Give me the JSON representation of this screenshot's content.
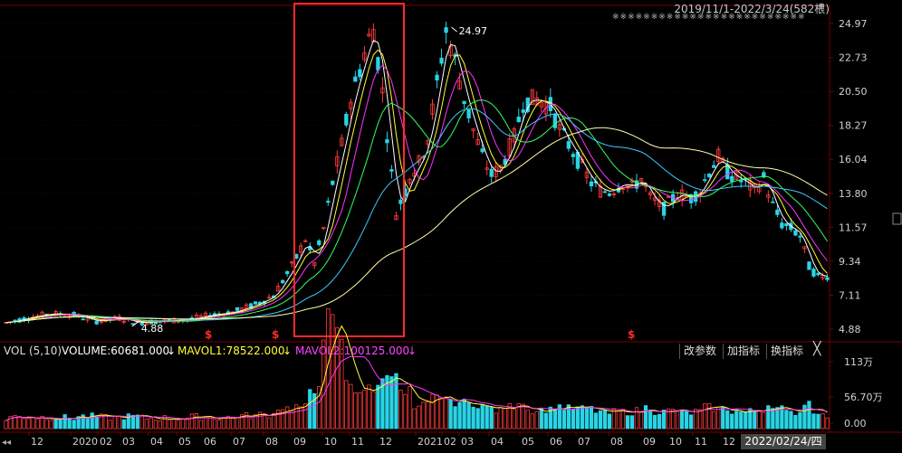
{
  "header": {
    "range_text": "2019/11/1-2022/3/24(582根)",
    "dots_text": "※※※※※※※※※※※※※※※※※※※※※※※※※"
  },
  "colors": {
    "up": "#ff3b3b",
    "down": "#29d4e6",
    "ma1": "#ffffff",
    "ma2": "#ffff33",
    "ma3": "#ff33ff",
    "ma4": "#33ff66",
    "ma5": "#40c8ff",
    "ma6": "#ffffaa",
    "highlight_box": "#ff2a2a"
  },
  "chart_data": {
    "type": "candlestick",
    "price_axis_ticks": [
      "24.97",
      "22.73",
      "20.50",
      "18.27",
      "16.04",
      "13.80",
      "11.57",
      "9.34",
      "7.11",
      "4.88"
    ],
    "y_range": [
      4.88,
      24.97
    ],
    "annotations": {
      "max_label": "24.97",
      "min_label": "4.88",
      "signal_marks": [
        "$",
        "$",
        "$"
      ],
      "highlighted_period": "2020/09 - 2020/12"
    },
    "x_labels": [
      "12",
      "2020",
      "02",
      "03",
      "04",
      "05",
      "06",
      "07",
      "08",
      "09",
      "10",
      "11",
      "12",
      "2021",
      "02",
      "03",
      "04",
      "05",
      "06",
      "07",
      "08",
      "09",
      "10",
      "11",
      "12",
      "2022/02/24/四"
    ],
    "price_keypoints": [
      [
        0,
        5.3
      ],
      [
        6,
        5.7
      ],
      [
        10,
        5.9
      ],
      [
        15,
        5.8
      ],
      [
        20,
        5.4
      ],
      [
        25,
        5.6
      ],
      [
        29,
        5.3
      ],
      [
        34,
        5.4
      ],
      [
        40,
        5.5
      ],
      [
        45,
        5.8
      ],
      [
        50,
        6.0
      ],
      [
        55,
        6.5
      ],
      [
        59,
        7.1
      ],
      [
        63,
        9.0
      ],
      [
        66,
        10.8
      ],
      [
        68,
        9.2
      ],
      [
        70,
        11.5
      ],
      [
        72,
        14.5
      ],
      [
        74,
        17.0
      ],
      [
        76,
        20.0
      ],
      [
        78,
        22.0
      ],
      [
        80,
        24.0
      ],
      [
        81,
        24.6
      ],
      [
        83,
        20.5
      ],
      [
        85,
        15.0
      ],
      [
        86,
        12.5
      ],
      [
        88,
        14.0
      ],
      [
        89,
        15.0
      ],
      [
        91,
        15.8
      ],
      [
        93,
        17.5
      ],
      [
        95,
        21.0
      ],
      [
        97,
        24.5
      ],
      [
        99,
        22.5
      ],
      [
        101,
        20.0
      ],
      [
        103,
        18.0
      ],
      [
        105,
        16.2
      ],
      [
        107,
        15.0
      ],
      [
        109,
        15.5
      ],
      [
        112,
        17.5
      ],
      [
        114,
        19.8
      ],
      [
        117,
        20.0
      ],
      [
        120,
        19.5
      ],
      [
        122,
        18.0
      ],
      [
        124,
        17.0
      ],
      [
        126,
        16.0
      ],
      [
        129,
        14.5
      ],
      [
        131,
        14.0
      ],
      [
        133,
        13.9
      ],
      [
        136,
        14.5
      ],
      [
        138,
        14.2
      ],
      [
        140,
        14.8
      ],
      [
        142,
        13.5
      ],
      [
        145,
        12.8
      ],
      [
        148,
        13.8
      ],
      [
        151,
        13.5
      ],
      [
        153,
        14.0
      ],
      [
        155,
        15.3
      ],
      [
        157,
        16.2
      ],
      [
        159,
        15.2
      ],
      [
        161,
        14.8
      ],
      [
        163,
        14.5
      ],
      [
        165,
        14.0
      ],
      [
        167,
        14.8
      ],
      [
        169,
        13.0
      ],
      [
        171,
        11.8
      ],
      [
        173,
        11.5
      ],
      [
        175,
        11.0
      ],
      [
        177,
        9.0
      ],
      [
        179,
        8.3
      ],
      [
        181,
        8.4
      ]
    ],
    "volume_indicator": {
      "name": "VOL (5,10)",
      "volume": "VOLUME:60681.000",
      "mavol1": "MAVOL1:78522.000",
      "mavol2": "MAVOL2:100125.000",
      "axis_ticks": [
        "113万",
        "56.70万",
        "0.00"
      ]
    }
  },
  "toolbar": {
    "change_params": "改参数",
    "add_indicator": "加指标",
    "switch_indicator": "换指标",
    "close": "╳"
  }
}
